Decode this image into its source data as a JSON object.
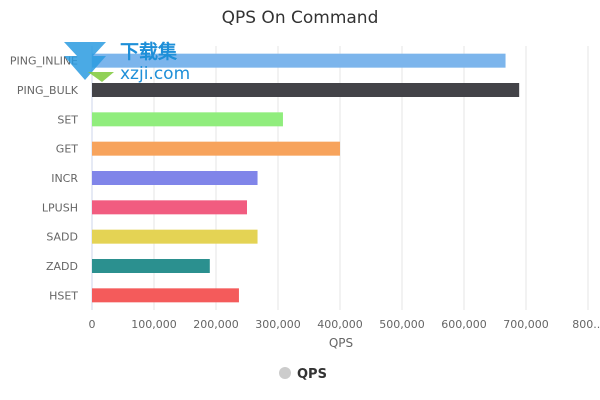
{
  "chart_data": {
    "type": "bar",
    "orientation": "horizontal",
    "title": "QPS On Command",
    "xlabel": "QPS",
    "ylabel": "",
    "categories": [
      "PING_INLINE",
      "PING_BULK",
      "SET",
      "GET",
      "INCR",
      "LPUSH",
      "SADD",
      "ZADD",
      "HSET"
    ],
    "values": [
      667000,
      689000,
      308000,
      400000,
      267000,
      250000,
      267000,
      190000,
      237000
    ],
    "bar_colors": [
      "#7cb5ec",
      "#434348",
      "#90ed7d",
      "#f7a35c",
      "#8085e9",
      "#f15c80",
      "#e4d354",
      "#2b908f",
      "#f45b5b"
    ],
    "xlim": [
      0,
      800000
    ],
    "x_ticks": [
      "0",
      "100,000",
      "200,000",
      "300,000",
      "400,000",
      "500,000",
      "600,000",
      "700,000",
      "800..."
    ],
    "grid": true,
    "legend": {
      "position": "bottom",
      "entries": [
        "QPS"
      ],
      "marker_color": "#cccccc"
    }
  },
  "watermark": {
    "text_top": "下载集",
    "text_bottom": "xzji.com"
  }
}
